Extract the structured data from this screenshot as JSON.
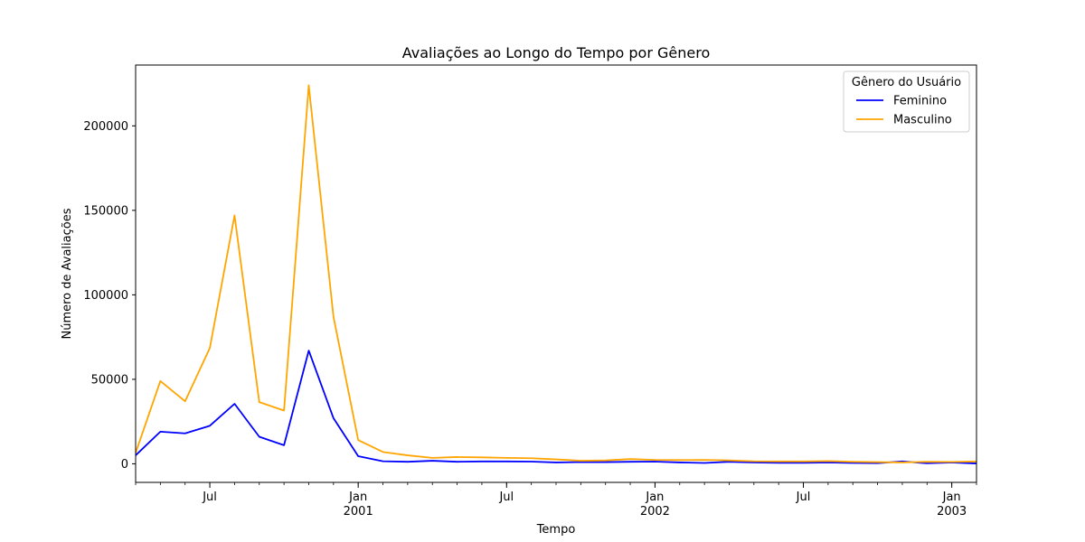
{
  "chart_data": {
    "type": "line",
    "title": "Avaliações ao Longo do Tempo por Gênero",
    "xlabel": "Tempo",
    "ylabel": "Número de Avaliações",
    "x_start": "2000-04",
    "x_end": "2003-02",
    "xlim": [
      "2000-04",
      "2003-02"
    ],
    "ylim": [
      -11000,
      236000
    ],
    "y_ticks": [
      0,
      50000,
      100000,
      150000,
      200000
    ],
    "x_major_ticks": [
      {
        "date": "2000-07",
        "label": "Jul",
        "sub": ""
      },
      {
        "date": "2001-01",
        "label": "Jan",
        "sub": "2001"
      },
      {
        "date": "2001-07",
        "label": "Jul",
        "sub": ""
      },
      {
        "date": "2002-01",
        "label": "Jan",
        "sub": "2002"
      },
      {
        "date": "2002-07",
        "label": "Jul",
        "sub": ""
      },
      {
        "date": "2003-01",
        "label": "Jan",
        "sub": "2003"
      }
    ],
    "grid": false,
    "legend": {
      "title": "Gênero do Usuário",
      "position": "top-right"
    },
    "x": [
      "2000-04",
      "2000-05",
      "2000-06",
      "2000-07",
      "2000-08",
      "2000-09",
      "2000-10",
      "2000-11",
      "2000-12",
      "2001-01",
      "2001-02",
      "2001-03",
      "2001-04",
      "2001-05",
      "2001-06",
      "2001-07",
      "2001-08",
      "2001-09",
      "2001-10",
      "2001-11",
      "2001-12",
      "2002-01",
      "2002-02",
      "2002-03",
      "2002-04",
      "2002-05",
      "2002-06",
      "2002-07",
      "2002-08",
      "2002-09",
      "2002-10",
      "2002-11",
      "2002-12",
      "2003-01",
      "2003-02"
    ],
    "series": [
      {
        "name": "Feminino",
        "color": "#0000ff",
        "values": [
          5000,
          19000,
          18000,
          22500,
          35500,
          16000,
          11000,
          67000,
          27000,
          4500,
          1500,
          1200,
          1800,
          1200,
          1400,
          1400,
          1300,
          800,
          1000,
          1000,
          1200,
          1300,
          800,
          500,
          1200,
          800,
          600,
          600,
          800,
          500,
          400,
          1400,
          300,
          800,
          200
        ]
      },
      {
        "name": "Masculino",
        "color": "#ffa500",
        "values": [
          6500,
          49000,
          37000,
          68500,
          147000,
          36500,
          31500,
          224000,
          87000,
          14000,
          7000,
          5000,
          3500,
          4000,
          3800,
          3500,
          3300,
          2600,
          1800,
          2000,
          2800,
          2300,
          2200,
          2300,
          2000,
          1500,
          1400,
          1400,
          1600,
          1200,
          1000,
          800,
          1200,
          1100,
          1400
        ]
      }
    ]
  }
}
